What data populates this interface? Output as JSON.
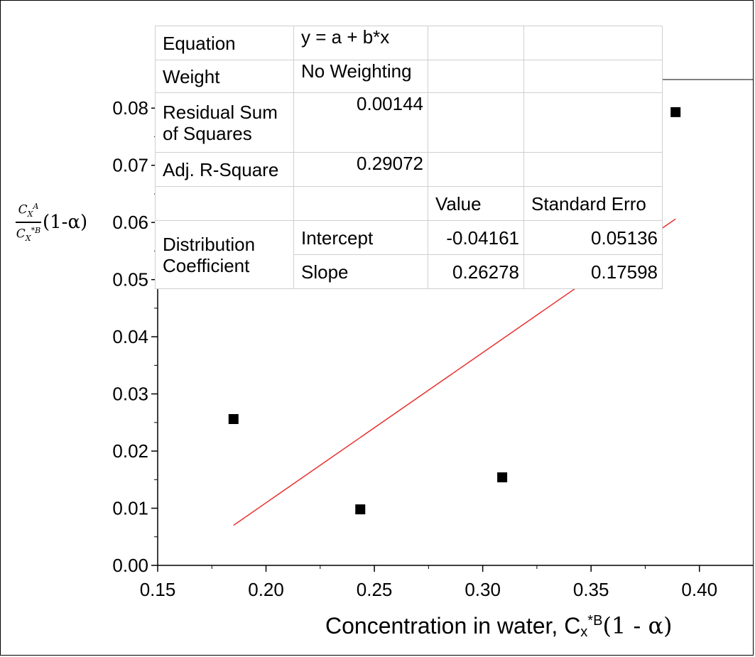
{
  "chart_data": {
    "type": "scatter",
    "xlabel": "Concentration in water, Cx*B(1 - α)",
    "ylabel": "C_X^A / C_X^*B (1-α)",
    "xlim": [
      0.15,
      0.425
    ],
    "ylim": [
      0.0,
      0.085
    ],
    "x_ticks": [
      "0.15",
      "0.20",
      "0.25",
      "0.30",
      "0.35",
      "0.40"
    ],
    "y_ticks": [
      "0.00",
      "0.01",
      "0.02",
      "0.03",
      "0.04",
      "0.05",
      "0.06",
      "0.07",
      "0.08"
    ],
    "points": [
      {
        "x": 0.185,
        "y": 0.0256
      },
      {
        "x": 0.2435,
        "y": 0.0098
      },
      {
        "x": 0.309,
        "y": 0.0154
      },
      {
        "x": 0.389,
        "y": 0.0793
      }
    ],
    "fit_line": {
      "intercept": -0.04161,
      "slope": 0.26278,
      "x_range": [
        0.185,
        0.389
      ],
      "color": "#e8322e"
    },
    "marker_color": "#000000",
    "fit_table": {
      "equation_label": "Equation",
      "equation_value": "y = a + b*x",
      "weight_label": "Weight",
      "weight_value": "No Weighting",
      "rss_label_line1": "Residual Sum",
      "rss_label_line2": "of Squares",
      "rss_value": "0.00144",
      "r2_label": "Adj. R-Square",
      "r2_value": "0.29072",
      "col_value": "Value",
      "col_se": "Standard Erro",
      "group_line1": "Distribution",
      "group_line2": "Coefficient",
      "intercept_label": "Intercept",
      "intercept_value": "-0.04161",
      "intercept_se": "0.05136",
      "slope_label": "Slope",
      "slope_value": "0.26278",
      "slope_se": "0.17598"
    }
  },
  "ylabel_parts": {
    "num_base": "C",
    "num_sub": "X",
    "num_sup": "A",
    "den_base": "C",
    "den_sub": "X",
    "den_sup": "*B",
    "tail": "(1-α)"
  },
  "xlabel_parts": {
    "main": "Concentration in water, ",
    "c": "C",
    "sub": "x",
    "sup_star": "*",
    "sup_b": "B",
    "tail": "(1 - α)"
  }
}
